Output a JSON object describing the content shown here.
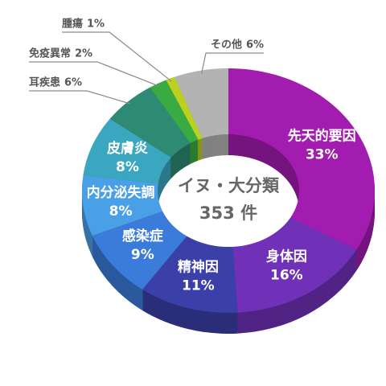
{
  "chart_data": {
    "type": "donut",
    "center_title": "イヌ・大分類",
    "center_subtitle": "353 件",
    "categories": [
      "先天的要因",
      "身体因",
      "精神因",
      "感染症",
      "内分泌失調",
      "皮膚炎",
      "耳疾患",
      "免疫異常",
      "腫瘍",
      "その他"
    ],
    "values": [
      33,
      16,
      11,
      9,
      8,
      8,
      6,
      2,
      1,
      6
    ],
    "value_labels": [
      "33%",
      "16%",
      "11%",
      "9%",
      "8%",
      "8%",
      "6%",
      "2%",
      "1%",
      "6%"
    ],
    "colors": [
      "#a21caf",
      "#7030b8",
      "#3b40a8",
      "#3b7bd9",
      "#4aa0e6",
      "#3aa6bf",
      "#2e8a72",
      "#3aab42",
      "#bcd11f",
      "#b3b3b3"
    ]
  }
}
